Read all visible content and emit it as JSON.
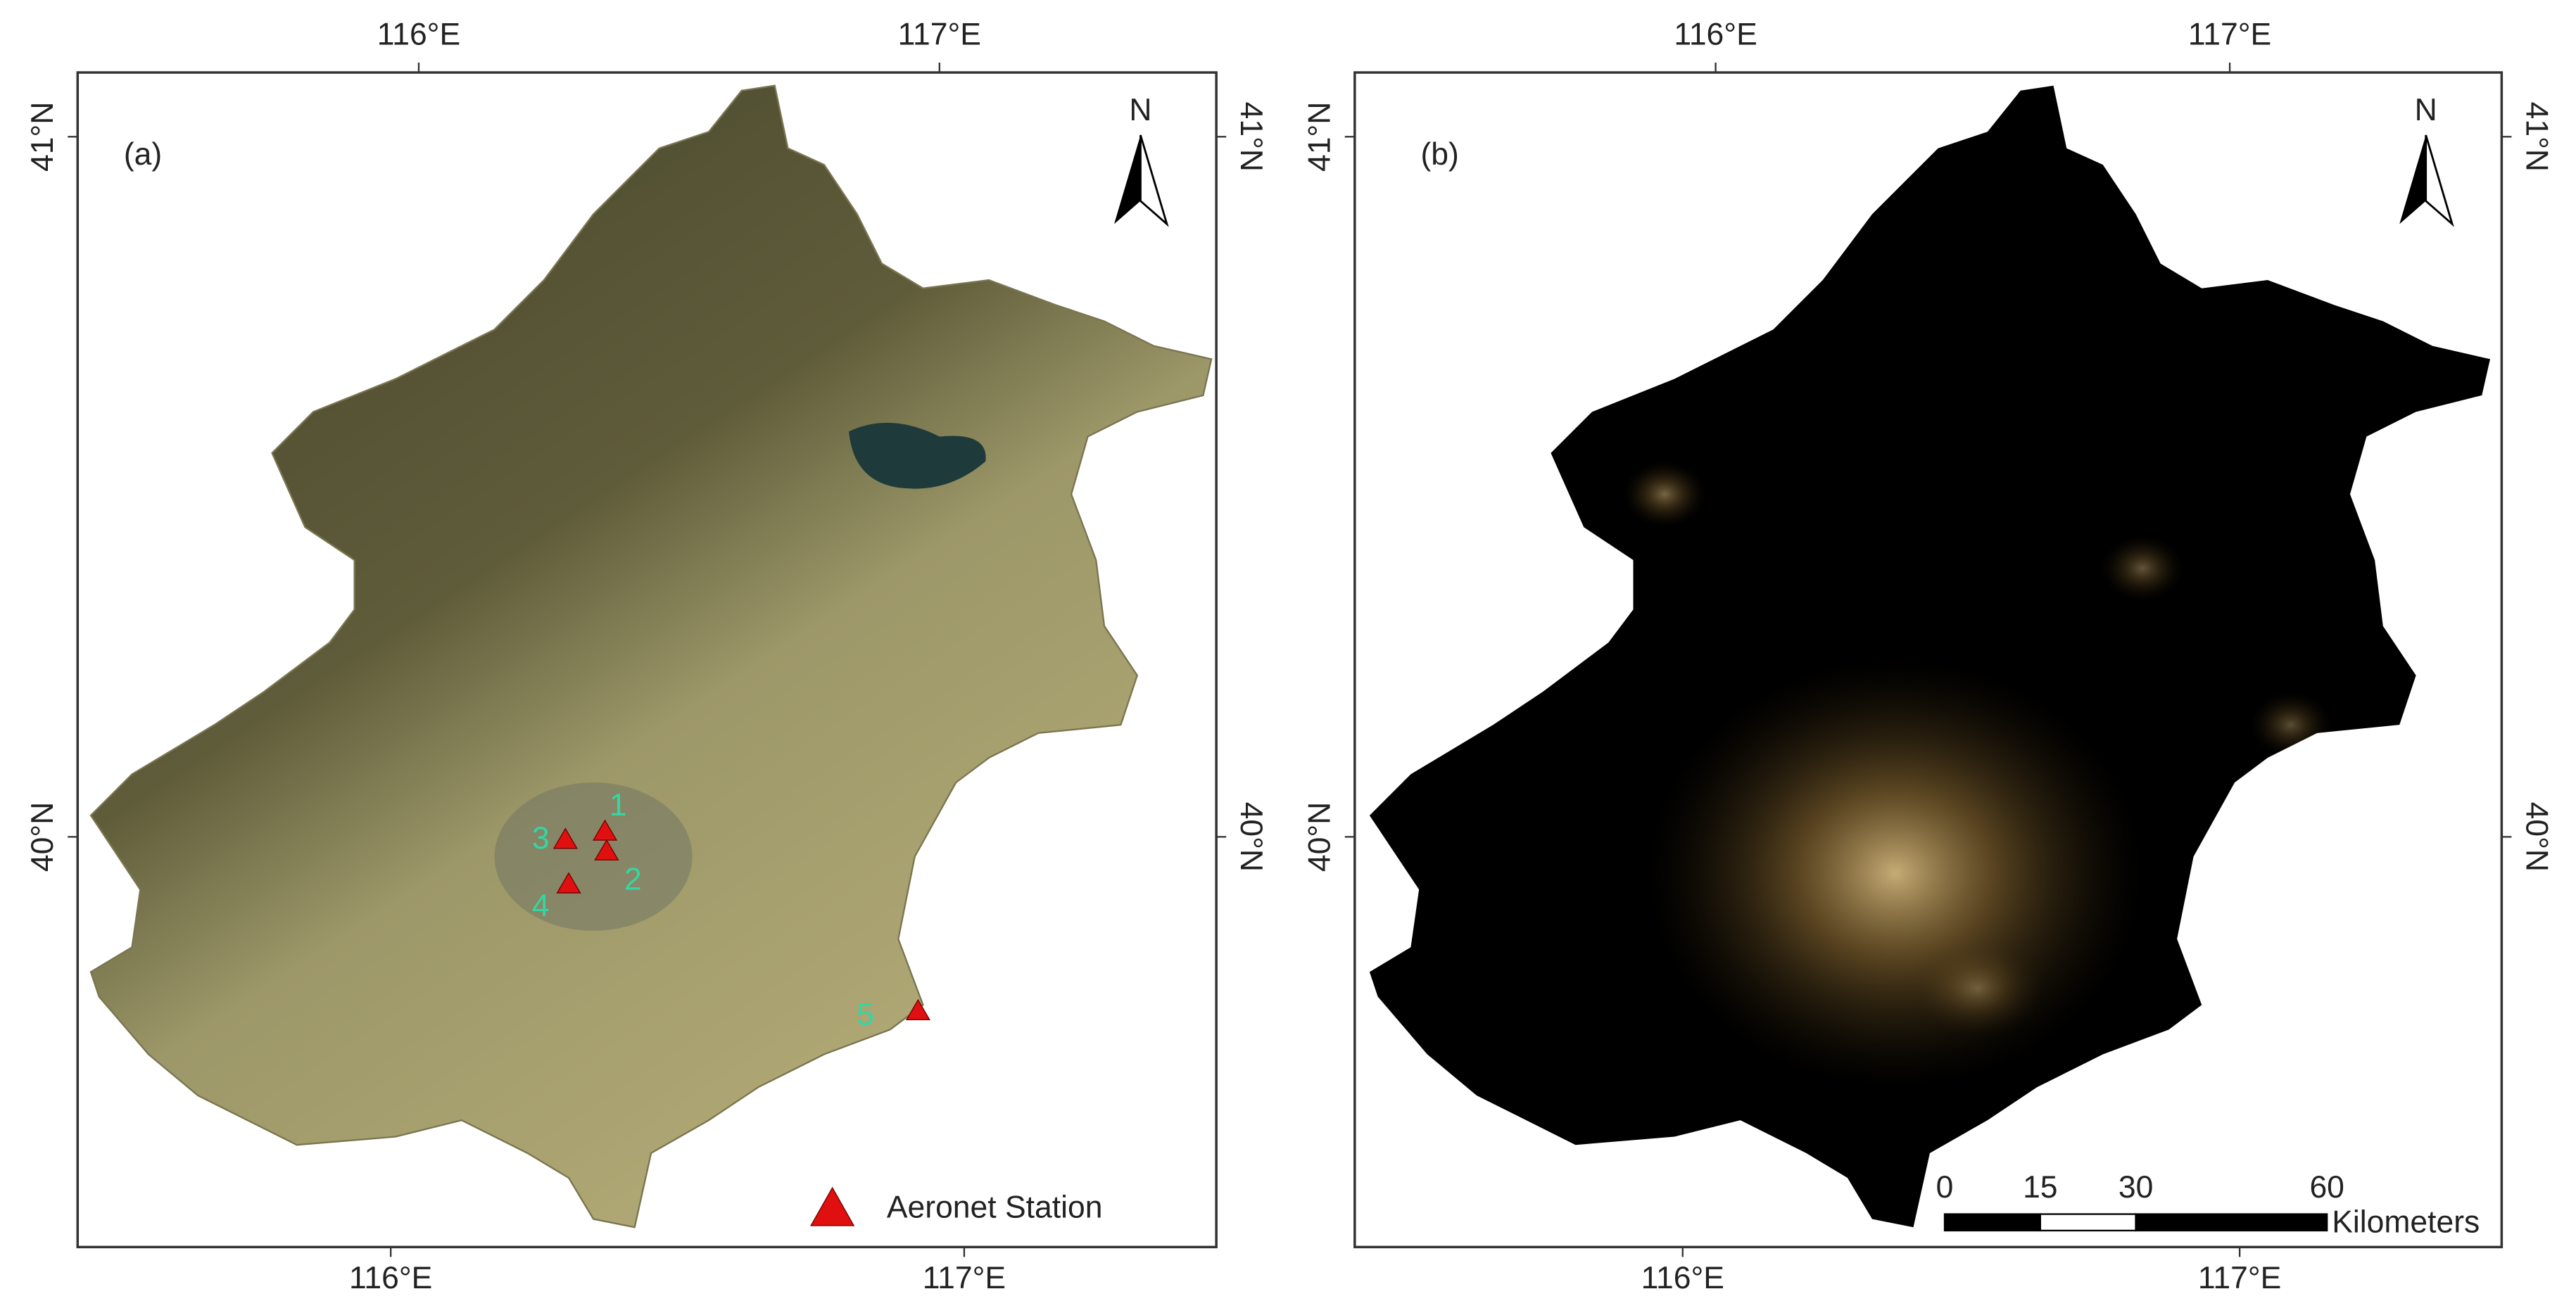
{
  "panels": [
    {
      "label": "(a)",
      "north": "N",
      "top_ticks": [
        "116°E",
        "117°E"
      ],
      "bottom_ticks": [
        "116°E",
        "117°E"
      ],
      "left_ticks": [
        "41°N",
        "40°N"
      ],
      "right_ticks": [
        "41°N",
        "40°N"
      ],
      "stations": [
        "1",
        "2",
        "3",
        "4",
        "5"
      ],
      "legend": "Aeronet Station"
    },
    {
      "label": "(b)",
      "north": "N",
      "top_ticks": [
        "116°E",
        "117°E"
      ],
      "bottom_ticks": [
        "116°E",
        "117°E"
      ],
      "left_ticks": [
        "41°N",
        "40°N"
      ],
      "right_ticks": [
        "41°N",
        "40°N"
      ],
      "scale_bar": {
        "ticks": [
          0,
          15,
          30,
          60
        ],
        "unit": "Kilometers"
      }
    }
  ]
}
